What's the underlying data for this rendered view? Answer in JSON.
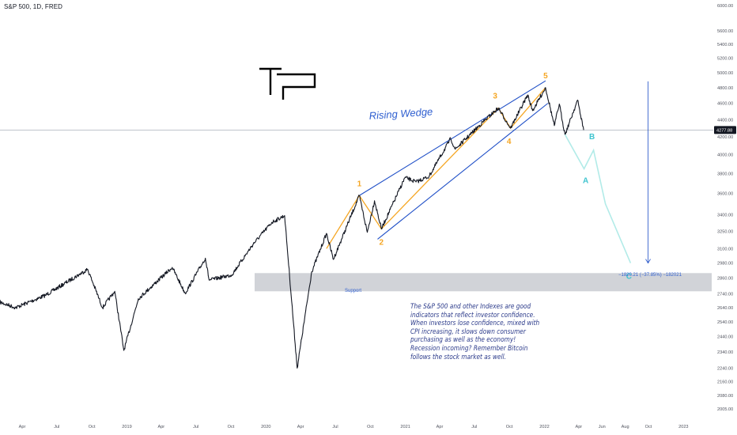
{
  "header": {
    "title": "S&P 500, 1D, FRED"
  },
  "colors": {
    "price": "#131722",
    "wedge": "#1f4fc7",
    "waves": "#f5a623",
    "projection": "#b2ebe8",
    "projection_label": "#3fc4cf",
    "support_zone": "#c9cbd1",
    "current_line": "#9aa0ad"
  },
  "logo": {
    "text": "TP",
    "icon": "tp-logo-icon"
  },
  "annotations": {
    "wedge_title": "Rising Wedge",
    "support_label": "Support",
    "measure_label": "−1820.21 (−37.85%) −182021",
    "current_price_label": "4277.88",
    "note": "The S&P 500 and other Indexes are good indicators that reflect investor confidence. When investors lose confidence, mixed with CPI increasing, it slows down consumer purchasing as well as the economy! Recession incoming? Remember Bitcoin follows the stock market as well.",
    "wave_labels": [
      "1",
      "2",
      "3",
      "4",
      "5"
    ],
    "projection_labels": [
      "A",
      "B",
      "C"
    ]
  },
  "chart_data": {
    "type": "line",
    "title": "S&P 500, 1D, FRED",
    "xlabel": "",
    "ylabel": "",
    "y_scale": "log",
    "ylim": [
      1960,
      6000
    ],
    "y_ticks": [
      "6000.00",
      "5600.00",
      "5400.00",
      "5200.00",
      "5000.00",
      "4800.00",
      "4600.00",
      "4400.00",
      "4200.00",
      "4000.00",
      "3800.00",
      "3600.00",
      "3400.00",
      "3250.00",
      "3100.00",
      "2980.00",
      "2860.00",
      "2740.00",
      "2640.00",
      "2540.00",
      "2440.00",
      "2340.00",
      "2240.00",
      "2160.00",
      "2080.00",
      "2005.00"
    ],
    "x_ticks": [
      "Apr",
      "Jul",
      "Oct",
      "2019",
      "Apr",
      "Jul",
      "Oct",
      "2020",
      "Apr",
      "Jul",
      "Oct",
      "2021",
      "Apr",
      "Jul",
      "Oct",
      "2022",
      "Apr",
      "Jun",
      "Aug",
      "Oct",
      "2023"
    ],
    "grid": false,
    "current_price": 4277.88,
    "price_series": {
      "name": "S&P 500",
      "x": [
        "2018-02-01",
        "2018-03-15",
        "2018-06-01",
        "2018-09-20",
        "2018-10-29",
        "2018-11-30",
        "2018-12-24",
        "2019-01-31",
        "2019-04-30",
        "2019-06-03",
        "2019-07-26",
        "2019-08-05",
        "2019-10-03",
        "2019-11-29",
        "2020-01-17",
        "2020-02-19",
        "2020-03-23",
        "2020-04-30",
        "2020-06-08",
        "2020-06-26",
        "2020-09-02",
        "2020-09-23",
        "2020-10-12",
        "2020-10-30",
        "2020-12-31",
        "2021-01-29",
        "2021-03-04",
        "2021-04-30",
        "2021-05-12",
        "2021-07-30",
        "2021-09-02",
        "2021-10-04",
        "2021-11-18",
        "2021-12-01",
        "2022-01-04",
        "2022-01-27",
        "2022-02-09",
        "2022-02-24",
        "2022-03-29",
        "2022-04-14"
      ],
      "y": [
        2680,
        2640,
        2730,
        2930,
        2640,
        2760,
        2350,
        2705,
        2945,
        2745,
        3020,
        2845,
        2885,
        3140,
        3330,
        3390,
        2240,
        2910,
        3230,
        3010,
        3580,
        3240,
        3530,
        3270,
        3760,
        3715,
        3770,
        4180,
        4060,
        4400,
        4540,
        4300,
        4705,
        4510,
        4800,
        4330,
        4590,
        4225,
        4640,
        4277.88
      ]
    },
    "elliott_waves": {
      "x": [
        "2020-06-08",
        "2020-09-02",
        "2020-10-30",
        "2021-09-02",
        "2021-10-04",
        "2022-01-04"
      ],
      "y": [
        3100,
        3580,
        3270,
        4540,
        4300,
        4800
      ],
      "labels": [
        "",
        "1",
        "2",
        "3",
        "4",
        "5"
      ]
    },
    "wedge_upper": {
      "x": [
        "2020-09-02",
        "2022-01-04"
      ],
      "y": [
        3580,
        4890
      ]
    },
    "wedge_lower": {
      "x": [
        "2020-10-20",
        "2022-01-10"
      ],
      "y": [
        3180,
        4600
      ]
    },
    "projection": {
      "x": [
        "2022-02-24",
        "2022-04-15",
        "2022-05-10",
        "2022-06-10",
        "2022-08-15"
      ],
      "y": [
        4225,
        3850,
        4050,
        3500,
        2980
      ],
      "labels": [
        "",
        "A",
        "B",
        "",
        "C"
      ]
    },
    "support_zone": {
      "x": [
        "2020-03-01",
        "2023-02-15"
      ],
      "y": [
        2760,
        2900
      ]
    },
    "measurement": {
      "x": "2022-09-30",
      "y_from": 4800,
      "y_to": 2980,
      "change": -1820.21,
      "percent": -37.85
    }
  }
}
